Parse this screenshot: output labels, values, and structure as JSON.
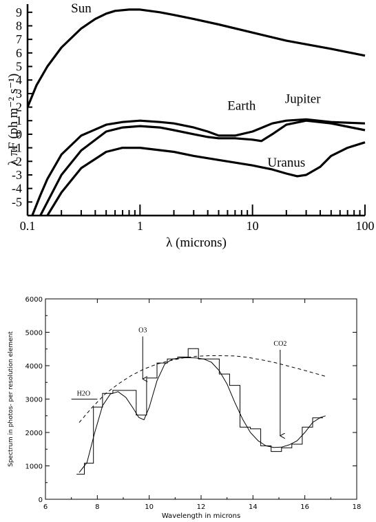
{
  "chart_data": [
    {
      "type": "line",
      "title": "",
      "xlabel": "λ (microns)",
      "ylabel": "λ πF (ph m⁻² s⁻¹)",
      "x_scale": "log",
      "xlim": [
        0.1,
        100
      ],
      "ylim": [
        -6,
        9.6
      ],
      "x_ticks": [
        0.1,
        1,
        10,
        100
      ],
      "x_tick_labels": [
        "0.1",
        "1",
        "10",
        "100"
      ],
      "y_ticks": [
        -5,
        -4,
        -3,
        -2,
        -1,
        0,
        1,
        2,
        3,
        4,
        5,
        6,
        7,
        8,
        9
      ],
      "y_tick_labels": [
        "-5",
        "-4",
        "-3",
        "-2",
        "-1",
        "0",
        "1",
        "2",
        "3",
        "4",
        "5",
        "6",
        "7",
        "8",
        "9"
      ],
      "grid": false,
      "legend": "none",
      "color": "#000000",
      "series": [
        {
          "name": "Sun",
          "x": [
            0.1,
            0.12,
            0.15,
            0.2,
            0.3,
            0.4,
            0.5,
            0.6,
            0.8,
            1,
            1.5,
            2,
            3,
            5,
            10,
            20,
            50,
            100
          ],
          "y": [
            2.0,
            3.6,
            5.0,
            6.4,
            7.8,
            8.5,
            8.9,
            9.1,
            9.2,
            9.2,
            9.0,
            8.8,
            8.5,
            8.1,
            7.5,
            6.9,
            6.3,
            5.8
          ]
        },
        {
          "name": "Earth",
          "x": [
            0.13,
            0.15,
            0.2,
            0.3,
            0.5,
            0.7,
            1,
            1.5,
            2,
            3,
            4,
            5,
            7,
            10,
            12,
            15,
            20,
            30,
            50,
            100
          ],
          "y": [
            -6.0,
            -5.0,
            -3.0,
            -1.2,
            0.2,
            0.5,
            0.6,
            0.5,
            0.3,
            0.0,
            -0.2,
            -0.3,
            -0.3,
            -0.4,
            -0.5,
            0.0,
            0.7,
            1.0,
            0.8,
            0.3
          ]
        },
        {
          "name": "Jupiter",
          "x": [
            0.11,
            0.13,
            0.15,
            0.2,
            0.3,
            0.5,
            0.7,
            1,
            1.5,
            2,
            3,
            4,
            5,
            7,
            10,
            15,
            20,
            30,
            50,
            100
          ],
          "y": [
            -6.0,
            -4.5,
            -3.3,
            -1.5,
            -0.1,
            0.7,
            0.9,
            1.0,
            0.9,
            0.8,
            0.5,
            0.2,
            -0.1,
            -0.1,
            0.2,
            0.8,
            1.0,
            1.1,
            0.9,
            0.8
          ]
        },
        {
          "name": "Uranus",
          "x": [
            0.15,
            0.2,
            0.3,
            0.5,
            0.7,
            1,
            2,
            3,
            5,
            10,
            15,
            20,
            25,
            30,
            40,
            50,
            70,
            100
          ],
          "y": [
            -6.0,
            -4.3,
            -2.5,
            -1.3,
            -1.0,
            -1.0,
            -1.3,
            -1.6,
            -1.9,
            -2.3,
            -2.6,
            -2.9,
            -3.1,
            -3.0,
            -2.4,
            -1.6,
            -1.0,
            -0.6
          ]
        }
      ],
      "annotations": [
        {
          "text": "Sun",
          "x": 0.3,
          "y": 9.0
        },
        {
          "text": "Earth",
          "x": 8,
          "y": 1.8
        },
        {
          "text": "Jupiter",
          "x": 28,
          "y": 2.3
        },
        {
          "text": "Uranus",
          "x": 20,
          "y": -2.4
        }
      ]
    },
    {
      "type": "line",
      "title": "",
      "xlabel": "Wavelength in microns",
      "ylabel": "Spectrum in photos- per resolution element",
      "xlim": [
        6,
        18
      ],
      "ylim": [
        0,
        6000
      ],
      "x_ticks": [
        6,
        8,
        10,
        12,
        14,
        16,
        18
      ],
      "x_tick_labels": [
        "6",
        "8",
        "10",
        "12",
        "14",
        "16",
        "18"
      ],
      "y_ticks": [
        0,
        1000,
        2000,
        3000,
        4000,
        5000,
        6000
      ],
      "y_tick_labels": [
        "0",
        "1000",
        "2000",
        "3000",
        "4000",
        "5000",
        "6000"
      ],
      "grid": false,
      "legend": "none",
      "color": "#000000",
      "series": [
        {
          "name": "",
          "style": "dashed",
          "x": [
            7.3,
            7.8,
            8.3,
            8.8,
            9.3,
            9.8,
            10.3,
            10.8,
            11.3,
            11.8,
            12.3,
            12.8,
            13.3,
            13.8,
            14.3,
            14.8,
            15.3,
            15.8,
            16.3,
            16.8
          ],
          "y": [
            2300,
            2750,
            3150,
            3450,
            3700,
            3900,
            4050,
            4150,
            4230,
            4280,
            4300,
            4300,
            4290,
            4250,
            4180,
            4100,
            4000,
            3900,
            3790,
            3680
          ]
        },
        {
          "name": "",
          "style": "step",
          "x": [
            7.2,
            7.5,
            7.85,
            8.2,
            8.6,
            9.1,
            9.5,
            9.9,
            10.3,
            10.7,
            11.1,
            11.5,
            11.9,
            12.3,
            12.7,
            13.1,
            13.5,
            13.9,
            14.3,
            14.7,
            15.1,
            15.5,
            15.9,
            16.3,
            16.7
          ],
          "y": [
            750,
            1080,
            2760,
            3170,
            3260,
            3260,
            2520,
            3630,
            4080,
            4200,
            4260,
            4510,
            4200,
            4200,
            3750,
            3410,
            2160,
            2110,
            1600,
            1430,
            1540,
            1650,
            2160,
            2440,
            2440
          ]
        },
        {
          "name": "",
          "style": "solid",
          "x": [
            7.3,
            7.6,
            7.9,
            8.2,
            8.5,
            8.8,
            9.1,
            9.4,
            9.6,
            9.8,
            10.0,
            10.3,
            10.6,
            10.9,
            11.2,
            11.5,
            11.8,
            12.1,
            12.4,
            12.7,
            13.0,
            13.3,
            13.6,
            13.9,
            14.2,
            14.5,
            14.8,
            15.1,
            15.4,
            15.7,
            16.0,
            16.3,
            16.6,
            16.8
          ],
          "y": [
            800,
            1100,
            2000,
            2800,
            3150,
            3220,
            3050,
            2700,
            2450,
            2380,
            2750,
            3550,
            4050,
            4200,
            4230,
            4240,
            4230,
            4200,
            4100,
            3850,
            3450,
            2900,
            2400,
            2000,
            1750,
            1600,
            1550,
            1560,
            1630,
            1750,
            2000,
            2300,
            2450,
            2500
          ]
        }
      ],
      "annotations": [
        {
          "text": "O3",
          "x": 9.75,
          "y": 5000,
          "arrow_to": [
            9.75,
            3600
          ]
        },
        {
          "text": "CO2",
          "x": 15.05,
          "y": 4600,
          "arrow_to": [
            15.05,
            1900
          ]
        },
        {
          "text": "H2O",
          "x": 7.0,
          "y": 3100,
          "underline_to": 8.0
        }
      ]
    }
  ]
}
